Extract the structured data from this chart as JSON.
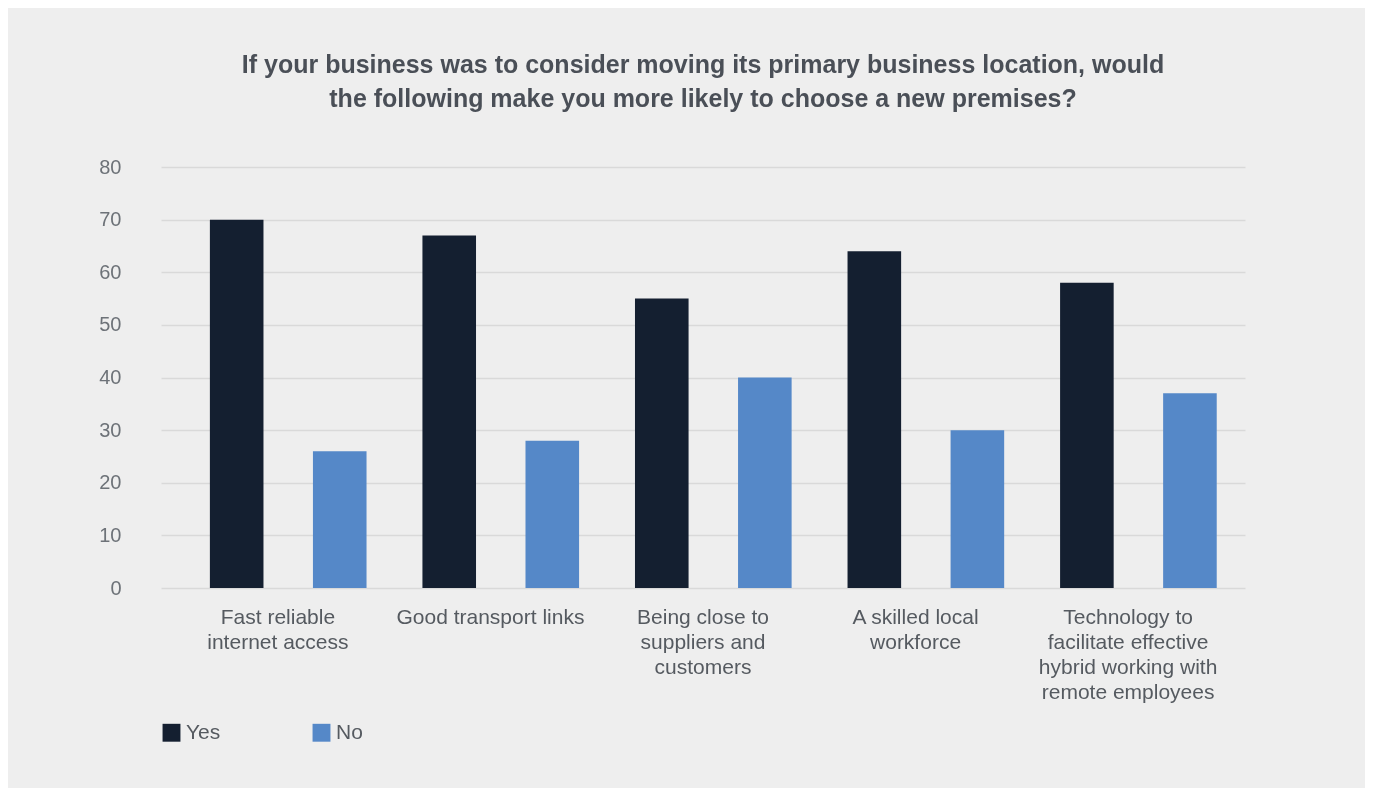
{
  "chart_data": {
    "type": "bar",
    "title": "If your business was to consider moving its primary business location, would the following make you more likely to choose a new premises?",
    "categories": [
      "Fast reliable internet access",
      "Good transport links",
      "Being close to suppliers and customers",
      "A skilled local workforce",
      "Technology to facilitate effective hybrid working with remote employees"
    ],
    "series": [
      {
        "name": "Yes",
        "color": "#141f30",
        "values": [
          70,
          67,
          55,
          64,
          58
        ]
      },
      {
        "name": "No",
        "color": "#5588c8",
        "values": [
          26,
          28,
          40,
          30,
          37
        ]
      }
    ],
    "ylim": [
      0,
      80
    ],
    "yticks": [
      0,
      10,
      20,
      30,
      40,
      50,
      60,
      70,
      80
    ],
    "grid": "y",
    "legend": "bottom"
  }
}
